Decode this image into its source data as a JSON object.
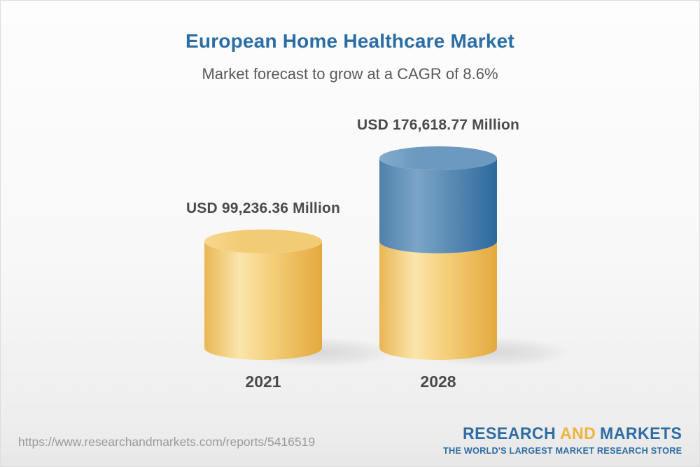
{
  "header": {
    "title": "European Home Healthcare Market",
    "subtitle": "Market forecast to grow at a CAGR of 8.6%"
  },
  "chart_data": {
    "type": "bar",
    "subtype": "3d-cylinder",
    "unit": "USD Million",
    "title": "European Home Healthcare Market",
    "subtitle": "Market forecast to grow at a CAGR of 8.6%",
    "cagr_percent": 8.6,
    "categories": [
      "2021",
      "2028"
    ],
    "values": [
      99236.36,
      176618.77
    ],
    "value_labels": [
      "USD 99,236.36 Million",
      "USD 176,618.77 Million"
    ],
    "legend": "none",
    "grid": false,
    "bars": [
      {
        "category": "2021",
        "value": 99236.36,
        "label": "USD 99,236.36 Million",
        "segments": [
          {
            "value": 99236.36,
            "color": "gold"
          }
        ]
      },
      {
        "category": "2028",
        "value": 176618.77,
        "label": "USD 176,618.77 Million",
        "segments": [
          {
            "value": 99236.36,
            "color": "gold"
          },
          {
            "value": 77382.41,
            "color": "blue"
          }
        ]
      }
    ],
    "colors": {
      "gold": {
        "body": [
          "#e9b654",
          "#fae5ab",
          "#f5d07c",
          "#e3a93e"
        ],
        "top": [
          "#f7d88f",
          "#f2cc74"
        ]
      },
      "blue": {
        "body": [
          "#4f81ac",
          "#7ba4c7",
          "#2d699d"
        ],
        "top": [
          "#83abcb",
          "#6c99c0"
        ]
      }
    }
  },
  "palette": {
    "title-blue": "#2b6da5",
    "subtitle-gray": "#595959",
    "text-gray": "#4a4a4a",
    "url-gray": "#9a9a9a",
    "logo-blue": "#2e6da4",
    "logo-gold": "#f0b43f"
  },
  "footer": {
    "url": "https://www.researchandmarkets.com/reports/5416519",
    "logo": {
      "part1": "RESEARCH",
      "part2": "AND",
      "part3": "MARKETS",
      "tagline": "THE WORLD'S LARGEST MARKET RESEARCH STORE"
    }
  }
}
